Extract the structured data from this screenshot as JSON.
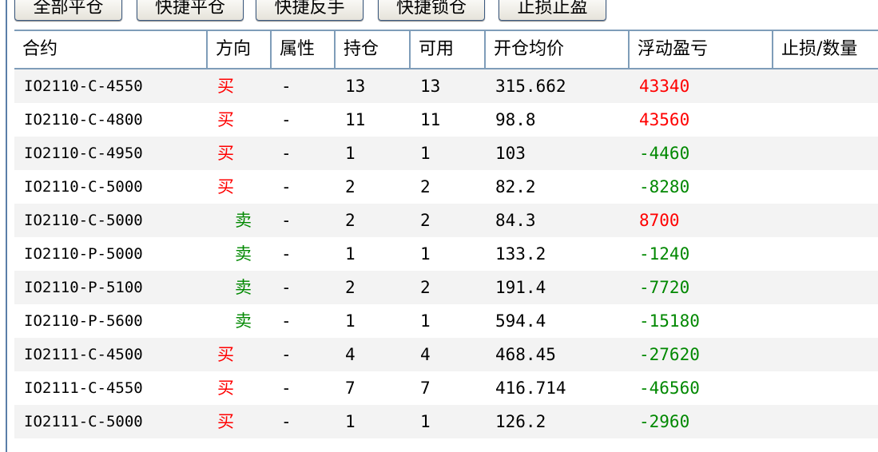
{
  "toolbar": {
    "buttons": [
      "全部平仓",
      "快捷平仓",
      "快捷反手",
      "快捷锁仓",
      "止损止盈"
    ]
  },
  "table": {
    "headers": [
      "合约",
      "方向",
      "属性",
      "持仓",
      "可用",
      "开仓均价",
      "浮动盈亏",
      "止损/数量"
    ],
    "rows": [
      [
        "IO2110-C-4550",
        "买",
        "-",
        "13",
        "13",
        "315.662",
        "43340",
        ""
      ],
      [
        "IO2110-C-4800",
        "买",
        "-",
        "11",
        "11",
        "98.8",
        "43560",
        ""
      ],
      [
        "IO2110-C-4950",
        "买",
        "-",
        "1",
        "1",
        "103",
        "-4460",
        ""
      ],
      [
        "IO2110-C-5000",
        "买",
        "-",
        "2",
        "2",
        "82.2",
        "-8280",
        ""
      ],
      [
        "IO2110-C-5000",
        "卖",
        "-",
        "2",
        "2",
        "84.3",
        "8700",
        ""
      ],
      [
        "IO2110-P-5000",
        "卖",
        "-",
        "1",
        "1",
        "133.2",
        "-1240",
        ""
      ],
      [
        "IO2110-P-5100",
        "卖",
        "-",
        "2",
        "2",
        "191.4",
        "-7720",
        ""
      ],
      [
        "IO2110-P-5600",
        "卖",
        "-",
        "1",
        "1",
        "594.4",
        "-15180",
        ""
      ],
      [
        "IO2111-C-4500",
        "买",
        "-",
        "4",
        "4",
        "468.45",
        "-27620",
        ""
      ],
      [
        "IO2111-C-4550",
        "买",
        "-",
        "7",
        "7",
        "416.714",
        "-46560",
        ""
      ],
      [
        "IO2111-C-5000",
        "买",
        "-",
        "1",
        "1",
        "126.2",
        "-2960",
        ""
      ]
    ]
  },
  "colors": {
    "buy": "#ff0000",
    "sell": "#008800",
    "profit": "#ff0000",
    "loss": "#008800",
    "grid": "#7f9db9"
  }
}
